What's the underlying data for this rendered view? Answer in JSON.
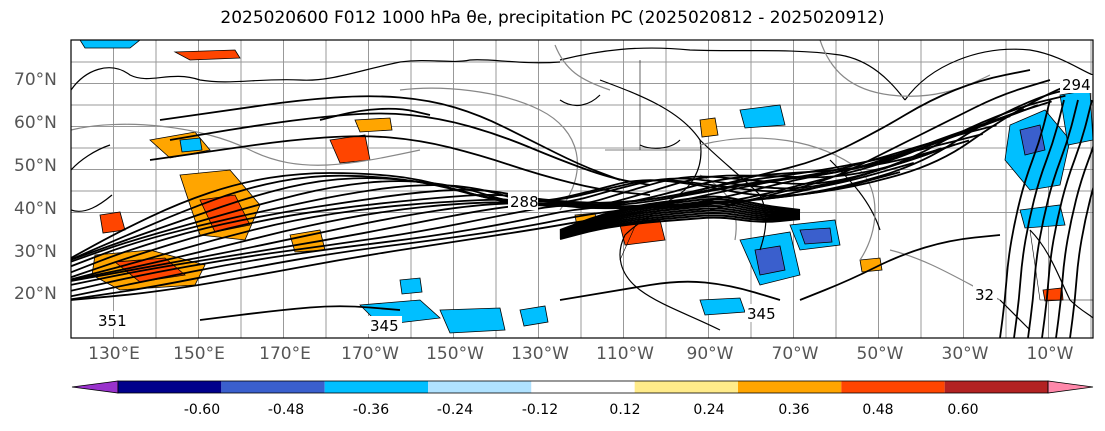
{
  "title": "2025020600 F012 1000 hPa θe, precipitation PC (2025020812 - 2025020912)",
  "lat_ticks": [
    "70°N",
    "60°N",
    "50°N",
    "40°N",
    "30°N",
    "20°N"
  ],
  "lon_ticks": [
    "130°E",
    "150°E",
    "170°E",
    "170°W",
    "150°W",
    "130°W",
    "110°W",
    "90°W",
    "70°W",
    "50°W",
    "30°W",
    "10°W"
  ],
  "contour_labels": [
    "288",
    "345",
    "351",
    "345",
    "32",
    "294"
  ],
  "colorbar": {
    "colors": [
      "#9932cc",
      "#00008b",
      "#3a5fcd",
      "#00bfff",
      "#b0e2ff",
      "#ffffff",
      "#ffeb8a",
      "#ffa500",
      "#ff4500",
      "#b22222",
      "#ff88aa"
    ],
    "labels": [
      "-0.60",
      "-0.48",
      "-0.36",
      "-0.24",
      "-0.12",
      "0.12",
      "0.24",
      "0.36",
      "0.48",
      "0.60"
    ]
  }
}
